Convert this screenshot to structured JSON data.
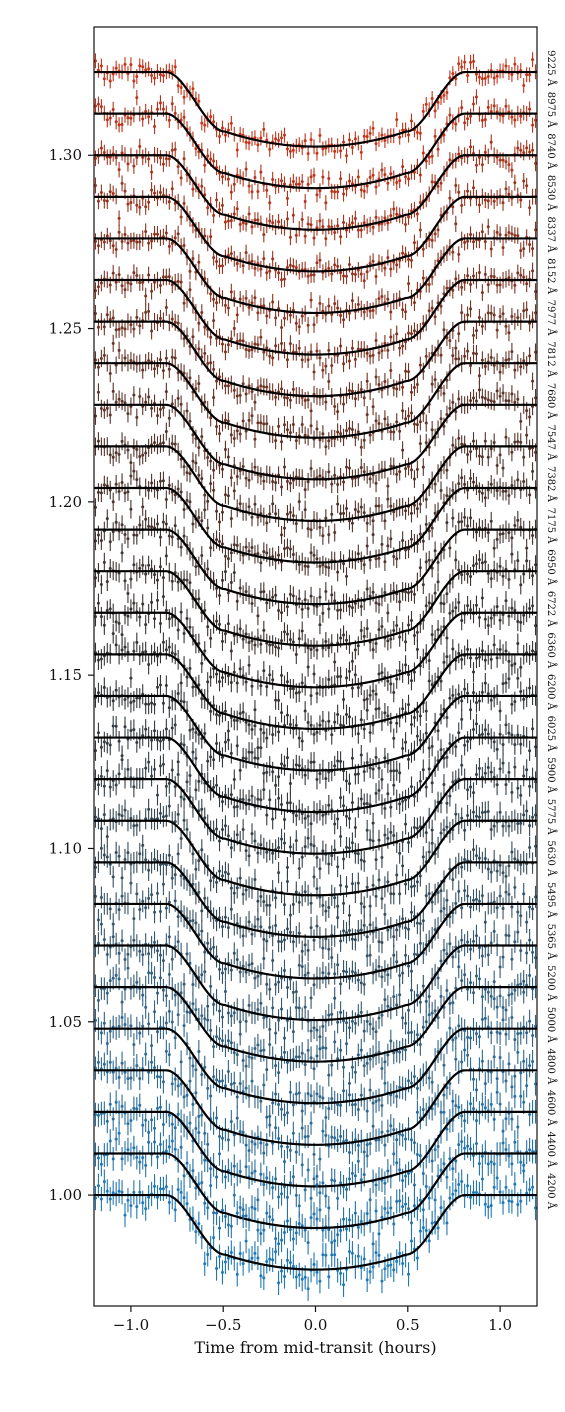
{
  "chart_data": {
    "type": "line",
    "title": "",
    "xlabel": "Time from mid-transit (hours)",
    "ylabel": "",
    "xlim": [
      -1.2,
      1.2
    ],
    "ylim": [
      0.968,
      1.337
    ],
    "x_ticks": [
      {
        "value": -1.0,
        "label": "−1.0"
      },
      {
        "value": -0.5,
        "label": "−0.5"
      },
      {
        "value": 0.0,
        "label": "0.0"
      },
      {
        "value": 0.5,
        "label": "0.5"
      },
      {
        "value": 1.0,
        "label": "1.0"
      }
    ],
    "y_ticks": [
      {
        "value": 1.0,
        "label": "1.00"
      },
      {
        "value": 1.05,
        "label": "1.05"
      },
      {
        "value": 1.1,
        "label": "1.10"
      },
      {
        "value": 1.15,
        "label": "1.15"
      },
      {
        "value": 1.2,
        "label": "1.20"
      },
      {
        "value": 1.25,
        "label": "1.25"
      },
      {
        "value": 1.3,
        "label": "1.30"
      }
    ],
    "grid": false,
    "legend": "none",
    "transit_model": {
      "ingress_start": -0.81,
      "ingress_end": -0.49,
      "egress_start": 0.49,
      "egress_end": 0.81,
      "depth": 0.0215
    },
    "series": [
      {
        "label": "4200 Å",
        "baseline": 1.0,
        "color": "#1f77b4"
      },
      {
        "label": "4400 Å",
        "baseline": 1.012,
        "color": "#2573aa"
      },
      {
        "label": "4600 Å",
        "baseline": 1.024,
        "color": "#2a6f9f"
      },
      {
        "label": "4800 Å",
        "baseline": 1.036,
        "color": "#2e6a94"
      },
      {
        "label": "5000 Å",
        "baseline": 1.048,
        "color": "#326589"
      },
      {
        "label": "5200 Å",
        "baseline": 1.06,
        "color": "#345f7d"
      },
      {
        "label": "5365 Å",
        "baseline": 1.072,
        "color": "#355972"
      },
      {
        "label": "5495 Å",
        "baseline": 1.084,
        "color": "#365367"
      },
      {
        "label": "5630 Å",
        "baseline": 1.096,
        "color": "#364d5c"
      },
      {
        "label": "5775 Å",
        "baseline": 1.108,
        "color": "#354752"
      },
      {
        "label": "5900 Å",
        "baseline": 1.12,
        "color": "#344149"
      },
      {
        "label": "6025 Å",
        "baseline": 1.132,
        "color": "#333b41"
      },
      {
        "label": "6200 Å",
        "baseline": 1.144,
        "color": "#33373a"
      },
      {
        "label": "6360 Å",
        "baseline": 1.156,
        "color": "#353535"
      },
      {
        "label": "6722 Å",
        "baseline": 1.168,
        "color": "#383433"
      },
      {
        "label": "6950 Å",
        "baseline": 1.18,
        "color": "#3d3431"
      },
      {
        "label": "7175 Å",
        "baseline": 1.192,
        "color": "#43342f"
      },
      {
        "label": "7382 Å",
        "baseline": 1.204,
        "color": "#4a342d"
      },
      {
        "label": "7547 Å",
        "baseline": 1.216,
        "color": "#52342b"
      },
      {
        "label": "7680 Å",
        "baseline": 1.228,
        "color": "#5b3429"
      },
      {
        "label": "7812 Å",
        "baseline": 1.24,
        "color": "#653427"
      },
      {
        "label": "7977 Å",
        "baseline": 1.252,
        "color": "#703425"
      },
      {
        "label": "8152 Å",
        "baseline": 1.264,
        "color": "#7c3423"
      },
      {
        "label": "8337 Å",
        "baseline": 1.276,
        "color": "#893421"
      },
      {
        "label": "8530 Å",
        "baseline": 1.288,
        "color": "#97341f"
      },
      {
        "label": "8740 Å",
        "baseline": 1.3,
        "color": "#a6341d"
      },
      {
        "label": "8975 Å",
        "baseline": 1.312,
        "color": "#b5341b"
      },
      {
        "label": "9225 Å",
        "baseline": 1.324,
        "color": "#c43419"
      }
    ]
  }
}
